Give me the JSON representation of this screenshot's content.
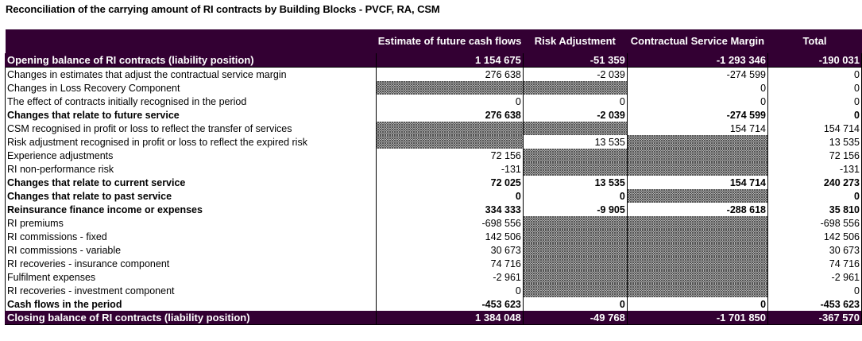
{
  "title": "Reconciliation of the carrying amount of RI contracts by Building Blocks - PVCF, RA, CSM",
  "columns": {
    "label": "",
    "pvcf": "Estimate of future cash flows",
    "ra": "Risk Adjustment",
    "csm": "Contractual Service Margin",
    "total": "Total"
  },
  "opening": {
    "label": "Opening balance of RI contracts (liability position)",
    "pvcf": "1 154 675",
    "ra": "-51 359",
    "csm": "-1 293 346",
    "total": "-190 031"
  },
  "rows": [
    {
      "label": "Changes in estimates that adjust the contractual service margin",
      "pvcf": "276 638",
      "ra": "-2 039",
      "csm": "-274 599",
      "total": "0"
    },
    {
      "label": "Changes in Loss Recovery Component",
      "pvcf": "",
      "ra": "",
      "csm": "0",
      "total": "0"
    },
    {
      "label": "The effect of contracts initially recognised in the period",
      "pvcf": "0",
      "ra": "0",
      "csm": "0",
      "total": "0"
    },
    {
      "label": "Changes that relate to future service",
      "pvcf": "276 638",
      "ra": "-2 039",
      "csm": "-274 599",
      "total": "0"
    },
    {
      "label": "CSM recognised in profit or loss to reflect the transfer of services",
      "pvcf": "",
      "ra": "",
      "csm": "154 714",
      "total": "154 714"
    },
    {
      "label": "Risk adjustment recognised in profit or loss to reflect the expired risk",
      "pvcf": "",
      "ra": "13 535",
      "csm": "",
      "total": "13 535"
    },
    {
      "label": "Experience adjustments",
      "pvcf": "72 156",
      "ra": "",
      "csm": "",
      "total": "72 156"
    },
    {
      "label": "RI non-performance risk",
      "pvcf": "-131",
      "ra": "",
      "csm": "",
      "total": "-131"
    },
    {
      "label": "Changes that relate to current service",
      "pvcf": "72 025",
      "ra": "13 535",
      "csm": "154 714",
      "total": "240 273"
    },
    {
      "label": "Changes that relate to past service",
      "pvcf": "0",
      "ra": "0",
      "csm": "",
      "total": "0"
    },
    {
      "label": "Reinsurance finance income or expenses",
      "pvcf": "334 333",
      "ra": "-9 905",
      "csm": "-288 618",
      "total": "35 810"
    },
    {
      "label": "RI premiums",
      "pvcf": "-698 556",
      "ra": "",
      "csm": "",
      "total": "-698 556"
    },
    {
      "label": "RI commissions - fixed",
      "pvcf": "142 506",
      "ra": "",
      "csm": "",
      "total": "142 506"
    },
    {
      "label": "RI commissions - variable",
      "pvcf": "30 673",
      "ra": "",
      "csm": "",
      "total": "30 673"
    },
    {
      "label": "RI recoveries - insurance component",
      "pvcf": "74 716",
      "ra": "",
      "csm": "",
      "total": "74 716"
    },
    {
      "label": "Fulfilment expenses",
      "pvcf": "-2 961",
      "ra": "",
      "csm": "",
      "total": "-2 961"
    },
    {
      "label": "RI recoveries - investment component",
      "pvcf": "0",
      "ra": "",
      "csm": "",
      "total": "0"
    },
    {
      "label": "Cash flows in the period",
      "pvcf": "-453 623",
      "ra": "0",
      "csm": "0",
      "total": "-453 623"
    }
  ],
  "closing": {
    "label": "Closing balance of RI contracts (liability position)",
    "pvcf": "1 384 048",
    "ra": "-49 768",
    "csm": "-1 701 850",
    "total": "-367 570"
  },
  "colors": {
    "header_bg": "#330033",
    "header_text": "#ffffff"
  }
}
